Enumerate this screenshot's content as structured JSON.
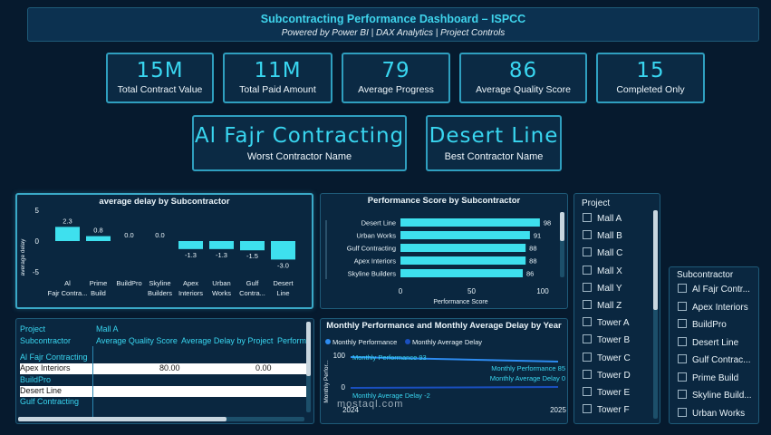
{
  "header": {
    "title": "Subcontracting Performance Dashboard – ISPCC",
    "subtitle": "Powered by Power BI | DAX Analytics | Project Controls"
  },
  "kpis": [
    {
      "value": "15M",
      "label": "Total Contract Value"
    },
    {
      "value": "11M",
      "label": "Total Paid Amount"
    },
    {
      "value": "79",
      "label": "Average Progress"
    },
    {
      "value": "86",
      "label": "Average Quality Score"
    },
    {
      "value": "15",
      "label": "Completed Only"
    }
  ],
  "kpis2": [
    {
      "value": "Al Fajr Contracting",
      "label": "Worst Contractor Name"
    },
    {
      "value": "Desert Line",
      "label": "Best Contractor Name"
    }
  ],
  "delay_chart": {
    "title": "average delay by Subcontractor",
    "ylabel": "average delay",
    "ticks": [
      "5",
      "0",
      "-5"
    ],
    "bars": [
      {
        "name": "Al Fajr Contra...",
        "value": 2.3,
        "label": "2.3"
      },
      {
        "name": "Prime Build",
        "value": 0.8,
        "label": "0.8"
      },
      {
        "name": "BuildPro",
        "value": 0.0,
        "label": "0.0"
      },
      {
        "name": "Skyline Builders",
        "value": 0.0,
        "label": "0.0"
      },
      {
        "name": "Apex Interiors",
        "value": -1.3,
        "label": "-1.3"
      },
      {
        "name": "Urban Works",
        "value": -1.3,
        "label": "-1.3"
      },
      {
        "name": "Gulf Contra...",
        "value": -1.5,
        "label": "-1.5"
      },
      {
        "name": "Desert Line",
        "value": -3.0,
        "label": "-3.0"
      }
    ]
  },
  "score_chart": {
    "title": "Performance Score by Subcontractor",
    "xlabel": "Performance Score",
    "ticks": [
      "0",
      "50",
      "100"
    ],
    "bars": [
      {
        "name": "Desert Line",
        "value": 98,
        "label": "98"
      },
      {
        "name": "Urban Works",
        "value": 91,
        "label": "91"
      },
      {
        "name": "Gulf Contracting",
        "value": 88,
        "label": "88"
      },
      {
        "name": "Apex Interiors",
        "value": 88,
        "label": "88"
      },
      {
        "name": "Skyline Builders",
        "value": 86,
        "label": "86"
      }
    ]
  },
  "line_chart": {
    "title": "Monthly Performance and Monthly Average Delay by Year",
    "legend": [
      "Monthly Performance",
      "Monthly Average Delay"
    ],
    "ylabel": "Monthly Perfor...",
    "yticks": [
      "100",
      "0"
    ],
    "xticks": [
      "2024",
      "2025"
    ],
    "labels": [
      "Monthly Performance  93",
      "Monthly Performance  85",
      "Monthly Average Delay  0",
      "Monthly Average Delay  -2"
    ]
  },
  "table": {
    "headers": [
      "Project",
      "Mall A"
    ],
    "subheaders": [
      "Subcontractor",
      "Average Quality Score",
      "Average Delay by Project",
      "Perform"
    ],
    "rows": [
      {
        "name": "Al Fajr Contracting",
        "score": "",
        "delay": ""
      },
      {
        "name": "Apex Interiors",
        "score": "80.00",
        "delay": "0.00"
      },
      {
        "name": "BuildPro",
        "score": "",
        "delay": ""
      },
      {
        "name": "Desert Line",
        "score": "",
        "delay": ""
      },
      {
        "name": "Gulf Contracting",
        "score": "",
        "delay": ""
      }
    ]
  },
  "project_slicer": {
    "title": "Project",
    "items": [
      "Mall A",
      "Mall B",
      "Mall C",
      "Mall X",
      "Mall Y",
      "Mall Z",
      "Tower A",
      "Tower B",
      "Tower C",
      "Tower D",
      "Tower E",
      "Tower F"
    ]
  },
  "subcontractor_slicer": {
    "title": "Subcontractor",
    "items": [
      "Al Fajr Contr...",
      "Apex Interiors",
      "BuildPro",
      "Desert Line",
      "Gulf Contrac...",
      "Prime Build",
      "Skyline Build...",
      "Urban Works"
    ]
  },
  "watermark": "mostaql.com",
  "colors": {
    "accent": "#39d6f0",
    "background": "#061a2e",
    "bar": "#3ee0ee"
  }
}
